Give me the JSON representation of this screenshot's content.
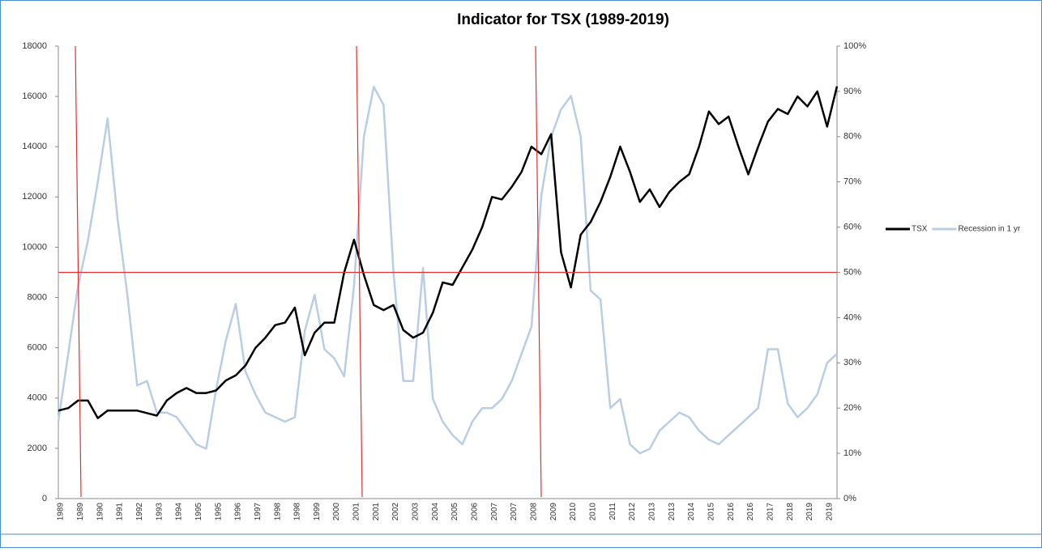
{
  "chart_data": {
    "type": "line",
    "title": "Indicator for TSX (1989-2019)",
    "categories": [
      "1989",
      null,
      "1989",
      null,
      "1990",
      null,
      "1991",
      null,
      "1992",
      null,
      "1993",
      null,
      "1994",
      null,
      "1995",
      null,
      "1995",
      null,
      "1996",
      null,
      "1997",
      null,
      "1998",
      null,
      "1998",
      null,
      "1999",
      null,
      "2000",
      null,
      "2001",
      null,
      "2001",
      null,
      "2002",
      null,
      "2003",
      null,
      "2004",
      null,
      "2005",
      null,
      "2006",
      null,
      "2007",
      null,
      "2007",
      null,
      "2008",
      null,
      "2009",
      null,
      "2010",
      null,
      "2010",
      null,
      "2011",
      null,
      "2012",
      null,
      "2013",
      null,
      "2013",
      null,
      "2014",
      null,
      "2015",
      null,
      "2016",
      null,
      "2016",
      null,
      "2017",
      null,
      "2018",
      null,
      "2019",
      null,
      "2019",
      null
    ],
    "series": [
      {
        "name": "TSX",
        "color": "#000000",
        "values": [
          3500,
          3600,
          3900,
          3900,
          3200,
          3500,
          3500,
          3500,
          3500,
          3400,
          3300,
          3900,
          4200,
          4400,
          4200,
          4200,
          4300,
          4700,
          4900,
          5300,
          6000,
          6400,
          6900,
          7000,
          7600,
          5700,
          6600,
          7000,
          7000,
          9000,
          10300,
          8900,
          7700,
          7500,
          7700,
          6700,
          6400,
          6600,
          7400,
          8600,
          8500,
          9200,
          9900,
          10800,
          12000,
          11900,
          12400,
          13000,
          14000,
          13700,
          14500,
          9800,
          8400,
          10500,
          11000,
          11800,
          12800,
          14000,
          13000,
          11800,
          12300,
          11600,
          12200,
          12600,
          12900,
          14000,
          15400,
          14900,
          15200,
          14000,
          12900,
          14000,
          15000,
          15500,
          15300,
          16000,
          15600,
          16200,
          14800,
          16400
        ]
      },
      {
        "name": "Recession in 1 yr",
        "color": "#b9cde5",
        "axis": "y2",
        "values": [
          17,
          32,
          47,
          57,
          70,
          84,
          62,
          45,
          25,
          26,
          19,
          19,
          18,
          15,
          12,
          11,
          24,
          35,
          43,
          28,
          23,
          19,
          18,
          17,
          18,
          37,
          45,
          33,
          31,
          27,
          47,
          80,
          91,
          87,
          50,
          26,
          26,
          51,
          22,
          17,
          14,
          12,
          17,
          20,
          20,
          22,
          26,
          32,
          38,
          67,
          80,
          86,
          89,
          80,
          46,
          44,
          20,
          22,
          12,
          10,
          11,
          15,
          17,
          19,
          18,
          15,
          13,
          12,
          14,
          16,
          18,
          20,
          33,
          33,
          21,
          18,
          20,
          23,
          30,
          32
        ]
      }
    ],
    "ylim": [
      0,
      18000
    ],
    "yticks": [
      0,
      2000,
      4000,
      6000,
      8000,
      10000,
      12000,
      14000,
      16000,
      18000
    ],
    "y2lim": [
      0,
      100
    ],
    "y2ticks": [
      {
        "value": 0,
        "label": "0%"
      },
      {
        "value": 10,
        "label": "10%"
      },
      {
        "value": 20,
        "label": "20%"
      },
      {
        "value": 30,
        "label": "30%"
      },
      {
        "value": 40,
        "label": "40%"
      },
      {
        "value": 50,
        "label": "50%"
      },
      {
        "value": 60,
        "label": "60%"
      },
      {
        "value": 70,
        "label": "70%"
      },
      {
        "value": 80,
        "label": "80%"
      },
      {
        "value": 90,
        "label": "90%"
      },
      {
        "value": 100,
        "label": "100%"
      }
    ],
    "hline": {
      "value": 50,
      "axis": "y2",
      "color": "#e03030"
    },
    "legend": "right"
  }
}
